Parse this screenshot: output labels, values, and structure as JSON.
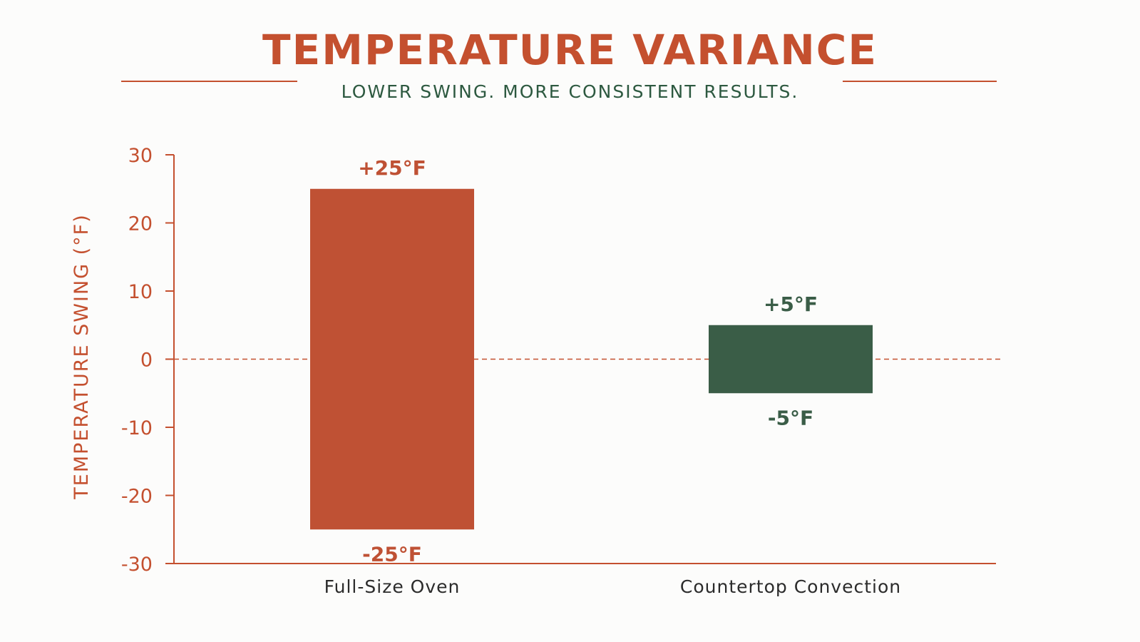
{
  "header": {
    "title": "TEMPERATURE VARIANCE",
    "subtitle": "LOWER SWING. MORE CONSISTENT RESULTS."
  },
  "colors": {
    "accent": "#c4502f",
    "secondary": "#2d5940"
  },
  "chart_data": {
    "type": "bar",
    "title": "TEMPERATURE VARIANCE",
    "subtitle": "LOWER SWING. MORE CONSISTENT RESULTS.",
    "xlabel": "",
    "ylabel": "TEMPERATURE SWING (°F)",
    "ylim": [
      -30,
      30
    ],
    "yticks": [
      30,
      20,
      10,
      0,
      -10,
      -20,
      -30
    ],
    "categories": [
      "Full-Size Oven",
      "Countertop Convection"
    ],
    "bars": [
      {
        "category": "Full-Size Oven",
        "low": -25,
        "high": 25,
        "label_high": "+25°F",
        "label_low": "-25°F",
        "color": "#bf5134"
      },
      {
        "category": "Countertop Convection",
        "low": -5,
        "high": 5,
        "label_high": "+5°F",
        "label_low": "-5°F",
        "color": "#3a5d47"
      }
    ],
    "reference_line": {
      "y": 0,
      "style": "dashed"
    },
    "grid": false,
    "legend": "none"
  }
}
